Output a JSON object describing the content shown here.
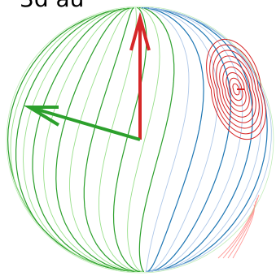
{
  "chart_data": {
    "type": "sphere-contour",
    "title": "3d au"
  }
}
